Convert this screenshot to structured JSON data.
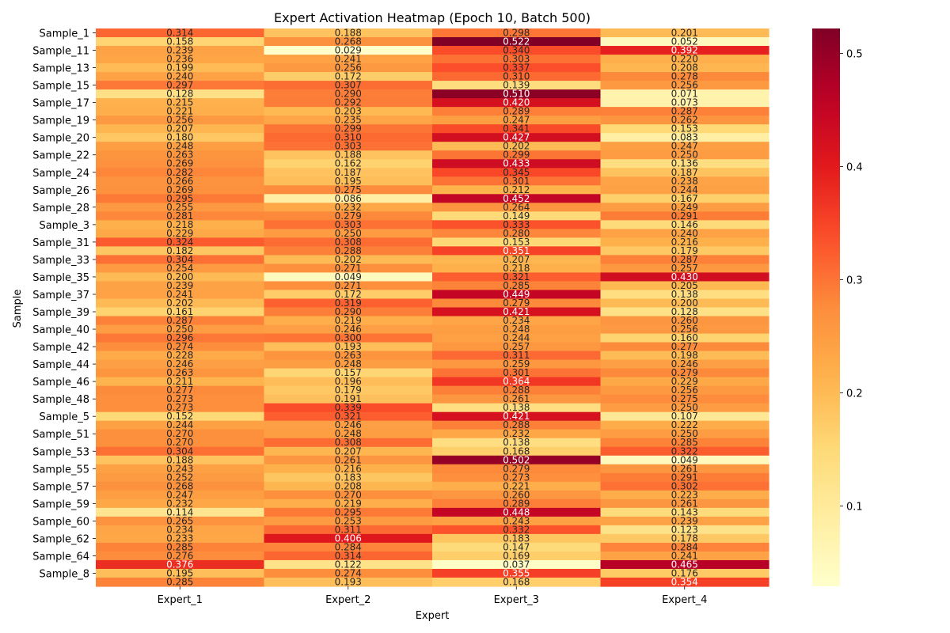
{
  "chart_data": {
    "type": "heatmap",
    "title": "Expert Activation Heatmap (Epoch 10, Batch 500)",
    "xlabel": "Expert",
    "ylabel": "Sample",
    "columns": [
      "Expert_1",
      "Expert_2",
      "Expert_3",
      "Expert_4"
    ],
    "ytick_labels": [
      "Sample_1",
      "Sample_11",
      "Sample_13",
      "Sample_15",
      "Sample_17",
      "Sample_19",
      "Sample_20",
      "Sample_22",
      "Sample_24",
      "Sample_26",
      "Sample_28",
      "Sample_3",
      "Sample_31",
      "Sample_33",
      "Sample_35",
      "Sample_37",
      "Sample_39",
      "Sample_40",
      "Sample_42",
      "Sample_44",
      "Sample_46",
      "Sample_48",
      "Sample_5",
      "Sample_51",
      "Sample_53",
      "Sample_55",
      "Sample_57",
      "Sample_59",
      "Sample_60",
      "Sample_62",
      "Sample_64",
      "Sample_8"
    ],
    "values": [
      [
        0.314,
        0.188,
        0.298,
        0.201
      ],
      [
        0.158,
        0.268,
        0.522,
        0.052
      ],
      [
        0.239,
        0.029,
        0.34,
        0.392
      ],
      [
        0.236,
        0.241,
        0.303,
        0.22
      ],
      [
        0.199,
        0.256,
        0.337,
        0.208
      ],
      [
        0.24,
        0.172,
        0.31,
        0.278
      ],
      [
        0.297,
        0.307,
        0.139,
        0.256
      ],
      [
        0.128,
        0.29,
        0.51,
        0.071
      ],
      [
        0.215,
        0.292,
        0.42,
        0.073
      ],
      [
        0.221,
        0.203,
        0.289,
        0.287
      ],
      [
        0.256,
        0.235,
        0.247,
        0.262
      ],
      [
        0.207,
        0.299,
        0.341,
        0.153
      ],
      [
        0.18,
        0.31,
        0.427,
        0.083
      ],
      [
        0.248,
        0.303,
        0.202,
        0.247
      ],
      [
        0.263,
        0.188,
        0.299,
        0.25
      ],
      [
        0.269,
        0.162,
        0.433,
        0.136
      ],
      [
        0.282,
        0.187,
        0.345,
        0.187
      ],
      [
        0.266,
        0.195,
        0.301,
        0.238
      ],
      [
        0.269,
        0.275,
        0.212,
        0.244
      ],
      [
        0.295,
        0.086,
        0.452,
        0.167
      ],
      [
        0.255,
        0.232,
        0.264,
        0.249
      ],
      [
        0.281,
        0.279,
        0.149,
        0.291
      ],
      [
        0.218,
        0.303,
        0.333,
        0.146
      ],
      [
        0.229,
        0.25,
        0.28,
        0.24
      ],
      [
        0.324,
        0.308,
        0.153,
        0.216
      ],
      [
        0.182,
        0.288,
        0.351,
        0.179
      ],
      [
        0.304,
        0.202,
        0.207,
        0.287
      ],
      [
        0.254,
        0.271,
        0.218,
        0.257
      ],
      [
        0.2,
        0.049,
        0.321,
        0.43
      ],
      [
        0.239,
        0.271,
        0.285,
        0.205
      ],
      [
        0.241,
        0.172,
        0.449,
        0.138
      ],
      [
        0.202,
        0.319,
        0.279,
        0.2
      ],
      [
        0.161,
        0.29,
        0.421,
        0.128
      ],
      [
        0.287,
        0.219,
        0.234,
        0.26
      ],
      [
        0.25,
        0.246,
        0.248,
        0.256
      ],
      [
        0.296,
        0.3,
        0.244,
        0.16
      ],
      [
        0.274,
        0.193,
        0.257,
        0.277
      ],
      [
        0.228,
        0.263,
        0.311,
        0.198
      ],
      [
        0.246,
        0.248,
        0.259,
        0.246
      ],
      [
        0.263,
        0.157,
        0.301,
        0.279
      ],
      [
        0.211,
        0.196,
        0.364,
        0.229
      ],
      [
        0.277,
        0.179,
        0.288,
        0.256
      ],
      [
        0.273,
        0.191,
        0.261,
        0.275
      ],
      [
        0.273,
        0.339,
        0.138,
        0.25
      ],
      [
        0.152,
        0.321,
        0.421,
        0.107
      ],
      [
        0.244,
        0.246,
        0.288,
        0.222
      ],
      [
        0.27,
        0.248,
        0.232,
        0.25
      ],
      [
        0.27,
        0.308,
        0.138,
        0.285
      ],
      [
        0.304,
        0.207,
        0.168,
        0.322
      ],
      [
        0.188,
        0.261,
        0.502,
        0.049
      ],
      [
        0.243,
        0.216,
        0.279,
        0.261
      ],
      [
        0.252,
        0.183,
        0.273,
        0.291
      ],
      [
        0.268,
        0.208,
        0.221,
        0.302
      ],
      [
        0.247,
        0.27,
        0.26,
        0.223
      ],
      [
        0.232,
        0.219,
        0.289,
        0.261
      ],
      [
        0.114,
        0.295,
        0.448,
        0.143
      ],
      [
        0.265,
        0.253,
        0.243,
        0.239
      ],
      [
        0.234,
        0.311,
        0.332,
        0.123
      ],
      [
        0.233,
        0.406,
        0.183,
        0.178
      ],
      [
        0.285,
        0.284,
        0.147,
        0.284
      ],
      [
        0.276,
        0.314,
        0.169,
        0.241
      ],
      [
        0.376,
        0.122,
        0.037,
        0.465
      ],
      [
        0.195,
        0.274,
        0.355,
        0.176
      ],
      [
        0.285,
        0.193,
        0.168,
        0.354
      ]
    ],
    "colormap": "YlOrRd",
    "vmin": 0.029,
    "vmax": 0.522,
    "colorbar_ticks": [
      0.1,
      0.2,
      0.3,
      0.4,
      0.5
    ],
    "value_precision": 3,
    "grid": false
  }
}
